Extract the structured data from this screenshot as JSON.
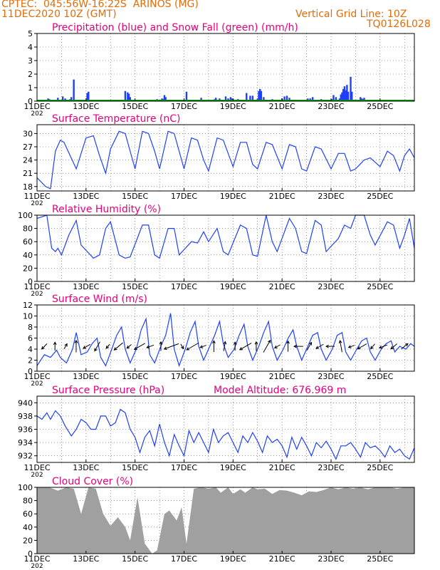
{
  "header": {
    "line1": "CPTEC:  045:56W-16:22S  ARINOS (MG)",
    "line2": "11DEC2020 10Z (GMT)",
    "grid_note": "Vertical Grid Line: 10Z",
    "run_code": "TQ0126L028"
  },
  "colors": {
    "header": "#e36c09",
    "title": "#e5007e",
    "precip": "#1f3fff",
    "snow": "#00a000",
    "line": "#1f3fff",
    "cloud": "#a0a0a0",
    "wind_arrow": "#000000"
  },
  "x_axis": {
    "ticks": [
      "11DEC",
      "13DEC",
      "15DEC",
      "17DEC",
      "19DEC",
      "21DEC",
      "23DEC",
      "25DEC"
    ],
    "tick_days": [
      0,
      2,
      4,
      6,
      8,
      10,
      12,
      14
    ],
    "year_stub": "202",
    "range_days": [
      0,
      15.4
    ]
  },
  "panels": [
    {
      "key": "precip",
      "title": "Precipitation (blue) and Snow Fall (green) (mm/h)",
      "yticks": [
        0,
        1,
        2,
        3,
        4,
        5
      ],
      "ylim": [
        0,
        5
      ]
    },
    {
      "key": "temp",
      "title": "Surface Temperature (nC)",
      "yticks": [
        18,
        21,
        24,
        27,
        30
      ],
      "ylim": [
        17,
        32
      ]
    },
    {
      "key": "rh",
      "title": "Relative Humidity (%)",
      "yticks": [
        0,
        20,
        40,
        60,
        80,
        100
      ],
      "ylim": [
        0,
        100
      ]
    },
    {
      "key": "wind",
      "title": "Surface Wind (m/s)",
      "yticks": [
        0,
        2,
        4,
        6,
        8,
        10,
        12
      ],
      "ylim": [
        0,
        12
      ]
    },
    {
      "key": "pres",
      "title": "Surface Pressure (hPa)",
      "extra": "Model Altitude: 676.969 m",
      "yticks": [
        932,
        934,
        936,
        938,
        940
      ],
      "ylim": [
        931,
        941
      ]
    },
    {
      "key": "cloud",
      "title": "Cloud Cover (%)",
      "yticks": [
        0,
        20,
        40,
        60,
        80,
        100
      ],
      "ylim": [
        0,
        100
      ]
    }
  ],
  "chart_data": [
    {
      "type": "bar",
      "title": "Precipitation (blue) and Snow Fall (green) (mm/h)",
      "xunit": "days since 11DEC 00Z",
      "series": [
        {
          "name": "Precipitation",
          "x": [
            0.45,
            0.5,
            0.7,
            0.85,
            1.0,
            1.05,
            1.15,
            1.3,
            1.35,
            1.4,
            1.5,
            2.05,
            2.1,
            3.6,
            3.7,
            3.75,
            3.8,
            4.9,
            5.05,
            5.1,
            5.15,
            5.2,
            5.25,
            6.1,
            6.65,
            6.7,
            7.25,
            7.3,
            7.45,
            7.7,
            7.8,
            7.9,
            7.95,
            8.0,
            8.1,
            8.2,
            8.3,
            8.55,
            8.7,
            8.8,
            8.9,
            9.0,
            9.05,
            9.1,
            9.15,
            9.25,
            9.6,
            9.65,
            9.85,
            10.0,
            10.1,
            10.2,
            10.3,
            11.05,
            11.15,
            11.2,
            11.25,
            11.6,
            11.7,
            11.75,
            12.05,
            12.1,
            12.2,
            12.35,
            12.4,
            12.45,
            12.5,
            12.55,
            12.6,
            12.65,
            12.7,
            12.8,
            12.85,
            13.2,
            13.25,
            13.3,
            13.35,
            13.4
          ],
          "values": [
            0.2,
            0.15,
            0.1,
            0.25,
            0.1,
            0.35,
            0.2,
            0.1,
            0.15,
            0.3,
            1.6,
            0.6,
            0.7,
            0.75,
            0.65,
            0.55,
            0.3,
            0.15,
            0.1,
            0.2,
            0.15,
            0.45,
            0.3,
            0.7,
            0.1,
            0.25,
            0.15,
            0.25,
            0.2,
            0.35,
            0.2,
            0.3,
            0.2,
            0.15,
            0.1,
            0.15,
            0.1,
            0.6,
            0.4,
            0.4,
            0.1,
            0.2,
            0.75,
            0.9,
            0.75,
            0.3,
            0.15,
            0.1,
            0.1,
            0.2,
            0.35,
            0.4,
            0.25,
            0.2,
            0.2,
            0.1,
            0.3,
            0.15,
            0.1,
            0.1,
            0.15,
            0.45,
            0.3,
            0.2,
            0.5,
            0.65,
            0.9,
            1.1,
            0.8,
            1.2,
            0.7,
            1.8,
            0.7,
            0.3,
            0.2,
            0.15,
            0.25,
            0.1
          ]
        },
        {
          "name": "Snow Fall",
          "x": [
            0,
            15.4
          ],
          "values": [
            0,
            0
          ]
        }
      ],
      "ylim": [
        0,
        5
      ]
    },
    {
      "type": "line",
      "title": "Surface Temperature (nC)",
      "xunit": "days since 11DEC 00Z",
      "ylim": [
        17,
        32
      ],
      "x": [
        0,
        0.35,
        0.55,
        0.75,
        0.95,
        1.1,
        1.35,
        1.6,
        2.0,
        2.3,
        2.55,
        2.8,
        3.0,
        3.35,
        3.6,
        4.0,
        4.3,
        4.55,
        4.8,
        5.0,
        5.35,
        5.6,
        6.0,
        6.3,
        6.55,
        6.8,
        7.0,
        7.35,
        7.6,
        8.0,
        8.3,
        8.55,
        8.8,
        9.0,
        9.35,
        9.6,
        10.0,
        10.3,
        10.55,
        10.8,
        11.0,
        11.35,
        11.6,
        12.0,
        12.3,
        12.55,
        12.8,
        13.0,
        13.35,
        13.6,
        14.0,
        14.3,
        14.55,
        14.8,
        15.0,
        15.2,
        15.4
      ],
      "values": [
        20.0,
        18.0,
        17.5,
        26.0,
        28.5,
        28.0,
        25.0,
        22.0,
        29.0,
        29.5,
        25.0,
        21.0,
        26.5,
        30.5,
        30.0,
        22.0,
        30.5,
        30.0,
        26.0,
        22.0,
        30.5,
        30.0,
        22.0,
        29.0,
        28.5,
        24.0,
        21.5,
        29.0,
        28.5,
        22.5,
        28.0,
        28.0,
        23.0,
        22.0,
        28.0,
        27.5,
        22.0,
        27.5,
        27.0,
        22.0,
        21.5,
        27.0,
        26.5,
        22.0,
        25.5,
        25.5,
        21.5,
        22.0,
        24.0,
        24.5,
        22.5,
        26.0,
        25.0,
        21.5,
        25.0,
        26.5,
        24.5
      ]
    },
    {
      "type": "line",
      "title": "Relative Humidity (%)",
      "xunit": "days since 11DEC 00Z",
      "ylim": [
        0,
        100
      ],
      "x": [
        0,
        0.4,
        0.6,
        0.75,
        0.85,
        1.0,
        1.3,
        1.6,
        1.8,
        2.3,
        2.55,
        2.8,
        3.0,
        3.35,
        3.6,
        3.8,
        4.3,
        4.55,
        4.8,
        5.0,
        5.35,
        5.6,
        5.8,
        6.3,
        6.55,
        6.8,
        7.0,
        7.35,
        7.6,
        7.8,
        8.3,
        8.55,
        8.8,
        9.0,
        9.35,
        9.6,
        9.8,
        10.3,
        10.55,
        10.8,
        11.0,
        11.35,
        11.6,
        11.8,
        12.3,
        12.55,
        12.8,
        13.0,
        13.35,
        13.6,
        13.8,
        14.3,
        14.55,
        14.8,
        15.0,
        15.2,
        15.4
      ],
      "values": [
        95.0,
        100.0,
        50.0,
        45.0,
        50.0,
        40.0,
        70.0,
        92.0,
        55.0,
        35.0,
        40.0,
        80.0,
        90.0,
        40.0,
        35.0,
        37.0,
        85.0,
        85.0,
        40.0,
        35.0,
        80.0,
        80.0,
        40.0,
        60.0,
        58.0,
        75.0,
        60.0,
        80.0,
        45.0,
        40.0,
        85.0,
        80.0,
        40.0,
        38.0,
        100.0,
        60.0,
        45.0,
        95.0,
        80.0,
        45.0,
        42.0,
        92.0,
        85.0,
        45.0,
        65.0,
        85.0,
        80.0,
        100.0,
        100.0,
        70.0,
        55.0,
        90.0,
        85.0,
        50.0,
        70.0,
        95.0,
        50.0
      ]
    },
    {
      "type": "line",
      "title": "Surface Wind (m/s)",
      "xunit": "days since 11DEC 00Z",
      "ylim": [
        0,
        12
      ],
      "x": [
        0,
        0.3,
        0.55,
        0.8,
        0.95,
        1.2,
        1.45,
        1.6,
        1.8,
        2.05,
        2.25,
        2.45,
        2.6,
        2.8,
        3.05,
        3.25,
        3.45,
        3.6,
        3.8,
        4.05,
        4.25,
        4.45,
        4.6,
        4.8,
        5.05,
        5.25,
        5.45,
        5.6,
        5.8,
        6.05,
        6.25,
        6.45,
        6.6,
        6.8,
        7.05,
        7.25,
        7.45,
        7.6,
        7.8,
        8.05,
        8.25,
        8.45,
        8.6,
        8.8,
        9.05,
        9.25,
        9.45,
        9.6,
        9.8,
        10.05,
        10.25,
        10.45,
        10.6,
        10.8,
        11.05,
        11.25,
        11.45,
        11.6,
        11.8,
        12.05,
        12.25,
        12.45,
        12.6,
        12.8,
        13.05,
        13.25,
        13.45,
        13.6,
        13.8,
        14.05,
        14.25,
        14.45,
        14.6,
        14.8,
        15.05,
        15.25,
        15.4
      ],
      "values": [
        1.0,
        3.0,
        2.5,
        3.8,
        2.5,
        1.5,
        4.0,
        7.0,
        3.0,
        3.5,
        5.0,
        6.0,
        2.5,
        1.0,
        4.0,
        6.5,
        8.0,
        4.0,
        1.5,
        4.0,
        7.5,
        9.5,
        3.0,
        1.5,
        4.5,
        6.5,
        10.5,
        4.0,
        1.0,
        4.0,
        7.0,
        9.0,
        4.5,
        2.0,
        4.5,
        6.5,
        9.0,
        5.0,
        2.5,
        4.0,
        6.5,
        8.5,
        4.5,
        2.0,
        4.5,
        7.0,
        9.0,
        4.5,
        2.0,
        4.0,
        6.0,
        7.5,
        4.5,
        2.0,
        4.5,
        6.5,
        7.0,
        4.0,
        2.0,
        4.0,
        6.5,
        7.0,
        3.5,
        2.0,
        4.0,
        5.5,
        6.0,
        3.5,
        2.0,
        4.0,
        5.0,
        5.5,
        3.5,
        4.5,
        4.0,
        5.0,
        4.5
      ],
      "arrows_dir_deg": [
        225,
        90,
        60,
        90,
        210,
        240,
        230,
        220,
        220,
        210,
        200,
        90,
        200,
        300,
        210,
        200,
        90,
        80,
        90,
        210,
        90,
        60,
        210,
        90,
        180,
        60,
        210,
        180,
        100,
        200,
        210,
        230,
        200,
        220,
        40
      ]
    },
    {
      "type": "line",
      "title": "Surface Pressure (hPa)",
      "extra": "Model Altitude: 676.969 m",
      "xunit": "days since 11DEC 00Z",
      "ylim": [
        931,
        941
      ],
      "x": [
        0,
        0.2,
        0.4,
        0.55,
        0.75,
        0.95,
        1.15,
        1.4,
        1.6,
        1.8,
        2.0,
        2.2,
        2.4,
        2.6,
        2.8,
        3.0,
        3.2,
        3.4,
        3.6,
        3.8,
        4.0,
        4.2,
        4.4,
        4.6,
        4.8,
        5.0,
        5.2,
        5.4,
        5.6,
        5.8,
        6.0,
        6.2,
        6.4,
        6.6,
        6.8,
        7.0,
        7.2,
        7.4,
        7.6,
        7.8,
        8.0,
        8.2,
        8.4,
        8.6,
        8.8,
        9.0,
        9.2,
        9.4,
        9.6,
        9.8,
        10.0,
        10.2,
        10.4,
        10.6,
        10.8,
        11.0,
        11.2,
        11.4,
        11.6,
        11.8,
        12.0,
        12.2,
        12.4,
        12.6,
        12.8,
        13.0,
        13.2,
        13.4,
        13.6,
        13.8,
        14.0,
        14.2,
        14.4,
        14.6,
        14.8,
        15.0,
        15.2,
        15.4
      ],
      "values": [
        938.0,
        937.5,
        938.5,
        937.5,
        938.8,
        938.0,
        936.5,
        935.0,
        936.0,
        937.5,
        937.0,
        936.0,
        936.0,
        938.0,
        938.0,
        936.5,
        937.0,
        939.0,
        938.5,
        936.0,
        934.8,
        932.5,
        934.8,
        935.8,
        933.5,
        936.8,
        934.0,
        932.0,
        935.2,
        933.5,
        932.0,
        935.8,
        934.0,
        935.5,
        934.0,
        932.5,
        936.0,
        934.0,
        935.0,
        935.5,
        934.0,
        932.5,
        935.0,
        934.0,
        935.5,
        934.2,
        932.5,
        935.0,
        934.0,
        934.5,
        933.5,
        931.8,
        934.8,
        933.0,
        934.8,
        933.5,
        932.0,
        934.0,
        933.2,
        934.2,
        933.0,
        931.5,
        933.5,
        933.5,
        934.0,
        933.0,
        931.8,
        934.0,
        933.2,
        933.5,
        932.8,
        931.8,
        933.5,
        932.5,
        933.0,
        932.0,
        931.5,
        933.2
      ]
    },
    {
      "type": "area",
      "title": "Cloud Cover (%)",
      "xunit": "days since 11DEC 00Z",
      "ylim": [
        0,
        100
      ],
      "x": [
        0,
        0.5,
        0.85,
        1.2,
        1.5,
        1.8,
        2.1,
        2.4,
        2.7,
        3.0,
        3.3,
        3.6,
        3.8,
        4.1,
        4.4,
        4.7,
        4.9,
        5.2,
        5.4,
        5.7,
        5.9,
        6.1,
        6.4,
        6.7,
        7.0,
        7.3,
        7.5,
        7.8,
        8.0,
        8.3,
        8.5,
        8.8,
        9.0,
        9.3,
        9.6,
        9.9,
        10.2,
        10.5,
        10.8,
        11.1,
        11.4,
        11.7,
        12.0,
        12.3,
        12.6,
        12.9,
        13.2,
        13.5,
        13.8,
        14.1,
        14.4,
        14.7,
        15.0,
        15.4
      ],
      "values": [
        100,
        100,
        95,
        100,
        98,
        60,
        100,
        98,
        60,
        42,
        55,
        40,
        20,
        85,
        15,
        0,
        5,
        60,
        65,
        50,
        70,
        15,
        98,
        100,
        98,
        100,
        92,
        100,
        90,
        97,
        92,
        100,
        97,
        98,
        90,
        96,
        95,
        92,
        88,
        94,
        93,
        96,
        100,
        97,
        100,
        98,
        100,
        97,
        100,
        100,
        100,
        98,
        100,
        100
      ]
    }
  ]
}
